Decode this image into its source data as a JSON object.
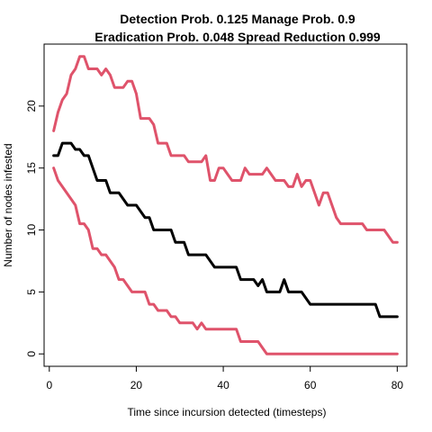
{
  "chart_data": {
    "type": "line",
    "title_line1": "Detection Prob. 0.125 Manage Prob. 0.9",
    "title_line2": "Eradication Prob. 0.048 Spread Reduction 0.999",
    "xlabel": "Time since incursion detected (timesteps)",
    "ylabel": "Number of nodes infested",
    "xlim": [
      -1.2,
      82.2
    ],
    "ylim": [
      -1,
      25
    ],
    "x_ticks": [
      0,
      20,
      40,
      60,
      80
    ],
    "y_ticks": [
      0,
      5,
      10,
      15,
      20
    ],
    "grid": false,
    "series": [
      {
        "role": "upper",
        "color": "#DF536B",
        "x": [
          1,
          2,
          3,
          4,
          5,
          6,
          7,
          8,
          9,
          10,
          11,
          12,
          13,
          14,
          15,
          16,
          17,
          18,
          19,
          20,
          21,
          22,
          23,
          24,
          25,
          26,
          27,
          28,
          29,
          30,
          31,
          32,
          33,
          34,
          35,
          36,
          37,
          38,
          39,
          40,
          41,
          42,
          43,
          44,
          45,
          46,
          47,
          48,
          49,
          50,
          51,
          52,
          53,
          54,
          55,
          56,
          57,
          58,
          59,
          60,
          61,
          62,
          63,
          64,
          65,
          66,
          67,
          68,
          69,
          70,
          71,
          72,
          73,
          74,
          75,
          76,
          77,
          78,
          79,
          80
        ],
        "y": [
          18,
          19.5,
          20.5,
          21,
          22.5,
          23,
          24,
          24,
          23,
          23,
          23,
          22.5,
          23,
          22.5,
          21.5,
          21.5,
          21.5,
          22,
          22,
          21,
          19,
          19,
          19,
          18.5,
          17,
          17,
          17,
          16,
          16,
          16,
          16,
          15.5,
          15.5,
          15.5,
          15.5,
          16,
          14,
          14,
          15,
          15,
          14.5,
          14,
          14,
          14,
          15,
          14.5,
          14.5,
          14.5,
          14.5,
          15,
          14.5,
          14,
          14,
          14,
          13.5,
          13.5,
          14.5,
          13.5,
          14,
          14,
          13,
          12,
          13,
          13,
          12,
          11,
          10.5,
          10.5,
          10.5,
          10.5,
          10.5,
          10.5,
          10,
          10,
          10,
          10,
          10,
          9.5,
          9,
          9
        ]
      },
      {
        "role": "median",
        "color": "#000000",
        "x": [
          1,
          2,
          3,
          4,
          5,
          6,
          7,
          8,
          9,
          10,
          11,
          12,
          13,
          14,
          15,
          16,
          17,
          18,
          19,
          20,
          21,
          22,
          23,
          24,
          25,
          26,
          27,
          28,
          29,
          30,
          31,
          32,
          33,
          34,
          35,
          36,
          37,
          38,
          39,
          40,
          41,
          42,
          43,
          44,
          45,
          46,
          47,
          48,
          49,
          50,
          51,
          52,
          53,
          54,
          55,
          56,
          57,
          58,
          59,
          60,
          61,
          62,
          63,
          64,
          65,
          66,
          67,
          68,
          69,
          70,
          71,
          72,
          73,
          74,
          75,
          76,
          77,
          78,
          79,
          80
        ],
        "y": [
          16,
          16,
          17,
          17,
          17,
          16.5,
          16.5,
          16,
          16,
          15,
          14,
          14,
          14,
          13,
          13,
          13,
          12.5,
          12,
          12,
          12,
          11.5,
          11,
          11,
          10,
          10,
          10,
          10,
          10,
          9,
          9,
          9,
          8,
          8,
          8,
          8,
          8,
          7.5,
          7,
          7,
          7,
          7,
          7,
          7,
          6,
          6,
          6,
          6,
          5.5,
          6,
          5,
          5,
          5,
          5,
          6,
          5,
          5,
          5,
          5,
          4.5,
          4,
          4,
          4,
          4,
          4,
          4,
          4,
          4,
          4,
          4,
          4,
          4,
          4,
          4,
          4,
          4,
          3,
          3,
          3,
          3,
          3
        ]
      },
      {
        "role": "lower",
        "color": "#DF536B",
        "x": [
          1,
          2,
          3,
          4,
          5,
          6,
          7,
          8,
          9,
          10,
          11,
          12,
          13,
          14,
          15,
          16,
          17,
          18,
          19,
          20,
          21,
          22,
          23,
          24,
          25,
          26,
          27,
          28,
          29,
          30,
          31,
          32,
          33,
          34,
          35,
          36,
          37,
          38,
          39,
          40,
          41,
          42,
          43,
          44,
          45,
          46,
          47,
          48,
          49,
          50,
          51,
          52,
          53,
          54,
          55,
          56,
          57,
          58,
          59,
          60,
          61,
          62,
          63,
          64,
          65,
          66,
          67,
          68,
          69,
          70,
          71,
          72,
          73,
          74,
          75,
          76,
          77,
          78,
          79,
          80
        ],
        "y": [
          15,
          14,
          13.5,
          13,
          12.5,
          12,
          10.5,
          10.5,
          10,
          8.5,
          8.5,
          8,
          8,
          7.5,
          7,
          6,
          6,
          5.5,
          5,
          5,
          5,
          5,
          4,
          4,
          3.5,
          3.5,
          3.5,
          3,
          3,
          2.5,
          2.5,
          2.5,
          2.5,
          2,
          2.5,
          2,
          2,
          2,
          2,
          2,
          2,
          2,
          2,
          1,
          1,
          1,
          1,
          1,
          0.5,
          0,
          0,
          0,
          0,
          0,
          0,
          0,
          0,
          0,
          0,
          0,
          0,
          0,
          0,
          0,
          0,
          0,
          0,
          0,
          0,
          0,
          0,
          0,
          0,
          0,
          0,
          0,
          0,
          0,
          0,
          0
        ]
      }
    ]
  }
}
